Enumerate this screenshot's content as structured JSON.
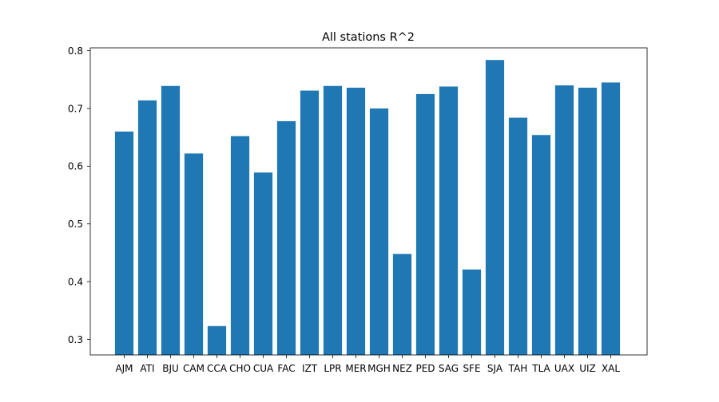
{
  "chart_data": {
    "type": "bar",
    "title": "All stations R^2",
    "xlabel": "",
    "ylabel": "",
    "categories": [
      "AJM",
      "ATI",
      "BJU",
      "CAM",
      "CCA",
      "CHO",
      "CUA",
      "FAC",
      "IZT",
      "LPR",
      "MER",
      "MGH",
      "NEZ",
      "PED",
      "SAG",
      "SFE",
      "SJA",
      "TAH",
      "TLA",
      "UAX",
      "UIZ",
      "XAL"
    ],
    "values": [
      0.66,
      0.714,
      0.739,
      0.622,
      0.323,
      0.652,
      0.589,
      0.678,
      0.731,
      0.739,
      0.736,
      0.7,
      0.448,
      0.725,
      0.738,
      0.421,
      0.784,
      0.684,
      0.654,
      0.74,
      0.736,
      0.745
    ],
    "ylim": [
      0.273,
      0.805
    ],
    "yticks": [
      0.3,
      0.4,
      0.5,
      0.6,
      0.7,
      0.8
    ],
    "ytick_labels": [
      "0.3",
      "0.4",
      "0.5",
      "0.6",
      "0.7",
      "0.8"
    ],
    "grid": false,
    "bar_color": "#1f77b4"
  }
}
